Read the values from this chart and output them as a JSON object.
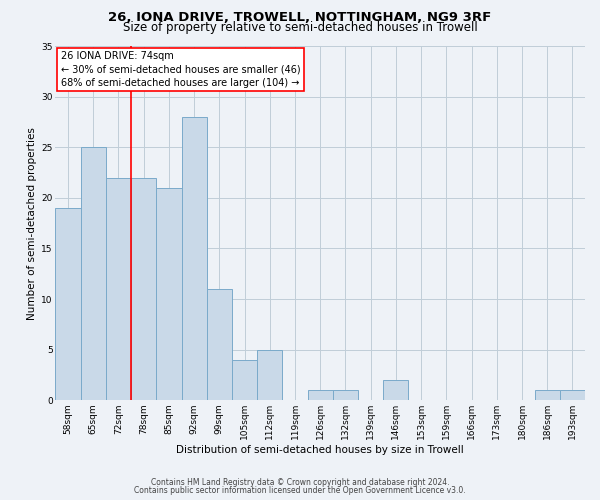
{
  "title": "26, IONA DRIVE, TROWELL, NOTTINGHAM, NG9 3RF",
  "subtitle": "Size of property relative to semi-detached houses in Trowell",
  "xlabel": "Distribution of semi-detached houses by size in Trowell",
  "ylabel": "Number of semi-detached properties",
  "categories": [
    "58sqm",
    "65sqm",
    "72sqm",
    "78sqm",
    "85sqm",
    "92sqm",
    "99sqm",
    "105sqm",
    "112sqm",
    "119sqm",
    "126sqm",
    "132sqm",
    "139sqm",
    "146sqm",
    "153sqm",
    "159sqm",
    "166sqm",
    "173sqm",
    "180sqm",
    "186sqm",
    "193sqm"
  ],
  "values": [
    19,
    25,
    22,
    22,
    21,
    28,
    11,
    4,
    5,
    0,
    1,
    1,
    0,
    2,
    0,
    0,
    0,
    0,
    0,
    1,
    1
  ],
  "bar_color": "#c9d9e8",
  "bar_edge_color": "#7aaaca",
  "property_line_x": 2.5,
  "annotation_text": "26 IONA DRIVE: 74sqm\n← 30% of semi-detached houses are smaller (46)\n68% of semi-detached houses are larger (104) →",
  "ylim": [
    0,
    35
  ],
  "yticks": [
    0,
    5,
    10,
    15,
    20,
    25,
    30,
    35
  ],
  "footer1": "Contains HM Land Registry data © Crown copyright and database right 2024.",
  "footer2": "Contains public sector information licensed under the Open Government Licence v3.0.",
  "background_color": "#eef2f7",
  "plot_bg_color": "#eef2f7",
  "grid_color": "#c0cdd8",
  "title_fontsize": 9.5,
  "subtitle_fontsize": 8.5,
  "tick_fontsize": 6.5,
  "ylabel_fontsize": 7.5,
  "xlabel_fontsize": 7.5,
  "annotation_fontsize": 7.0,
  "footer_fontsize": 5.5
}
